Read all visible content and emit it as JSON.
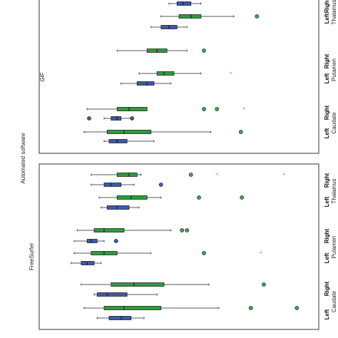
{
  "chart_data": {
    "type": "boxplot",
    "orientation": "horizontal",
    "outer_label": "Automated software",
    "colors": {
      "blue": "#3d5aa6",
      "green": "#2e9b3b",
      "outlier_green": "#3fa34d",
      "panel_border": "#333333"
    },
    "panels": [
      {
        "name": "GIF",
        "regions": [
          {
            "name": "Thalamus",
            "sides": [
              {
                "side": "Right",
                "boxes": [
                  {
                    "color": "blue",
                    "min": 0.23,
                    "q1": 0.238,
                    "median": 0.244,
                    "q3": 0.252,
                    "max": 0.262,
                    "outliers": [],
                    "stars": []
                  },
                  {
                    "color": "green",
                    "min": 0.222,
                    "q1": 0.24,
                    "median": 0.252,
                    "q3": 0.262,
                    "max": 0.295,
                    "outliers": [
                      0.318
                    ],
                    "stars": []
                  }
                ]
              },
              {
                "side": "Left",
                "boxes": [
                  {
                    "color": "blue",
                    "min": 0.212,
                    "q1": 0.222,
                    "median": 0.23,
                    "q3": 0.238,
                    "max": 0.248,
                    "outliers": [],
                    "stars": []
                  }
                ]
              }
            ]
          },
          {
            "name": "Putamen",
            "sides": [
              {
                "side": "Right",
                "boxes": [
                  {
                    "color": "green",
                    "min": 0.178,
                    "q1": 0.208,
                    "median": 0.218,
                    "q3": 0.228,
                    "max": 0.248,
                    "outliers": [
                      0.265
                    ],
                    "stars": []
                  },
                  {
                    "color": "green",
                    "min": 0.2,
                    "q1": 0.218,
                    "median": 0.225,
                    "q3": 0.235,
                    "max": 0.262,
                    "outliers": [],
                    "stars": [
                      0.292
                    ]
                  }
                ]
              },
              {
                "side": "Left",
                "boxes": [
                  {
                    "color": "blue",
                    "min": 0.182,
                    "q1": 0.198,
                    "median": 0.208,
                    "q3": 0.215,
                    "max": 0.232,
                    "outliers": [],
                    "stars": []
                  }
                ]
              }
            ]
          },
          {
            "name": "Caudate",
            "sides": [
              {
                "side": "Right",
                "boxes": [
                  {
                    "color": "green",
                    "min": 0.148,
                    "q1": 0.178,
                    "median": 0.19,
                    "q3": 0.208,
                    "max": 0.208,
                    "outliers": [
                      0.265,
                      0.278
                    ],
                    "stars": [
                      0.305
                    ]
                  },
                  {
                    "color": "blue",
                    "min": 0.165,
                    "q1": 0.172,
                    "median": 0.178,
                    "q3": 0.182,
                    "max": 0.192,
                    "outliers": [
                      0.15,
                      0.193
                    ],
                    "stars": []
                  }
                ]
              },
              {
                "side": "Left",
                "boxes": [
                  {
                    "color": "green",
                    "min": 0.145,
                    "q1": 0.168,
                    "median": 0.185,
                    "q3": 0.212,
                    "max": 0.272,
                    "outliers": [
                      0.302
                    ],
                    "stars": []
                  },
                  {
                    "color": "blue",
                    "min": 0.165,
                    "q1": 0.17,
                    "median": 0.178,
                    "q3": 0.188,
                    "max": 0.215,
                    "outliers": [],
                    "stars": []
                  }
                ]
              }
            ]
          }
        ]
      },
      {
        "name": "FreeSurfer",
        "regions": [
          {
            "name": "Thalamus",
            "sides": [
              {
                "side": "Right",
                "boxes": [
                  {
                    "color": "green",
                    "min": 0.152,
                    "q1": 0.178,
                    "median": 0.19,
                    "q3": 0.198,
                    "max": 0.202,
                    "outliers": [
                      0.252
                    ],
                    "stars": [
                      0.278,
                      0.345
                    ]
                  },
                  {
                    "color": "blue",
                    "min": 0.152,
                    "q1": 0.165,
                    "median": 0.172,
                    "q3": 0.182,
                    "max": 0.195,
                    "outliers": [
                      0.222
                    ],
                    "stars": []
                  }
                ]
              },
              {
                "side": "Left",
                "boxes": [
                  {
                    "color": "green",
                    "min": 0.16,
                    "q1": 0.178,
                    "median": 0.192,
                    "q3": 0.208,
                    "max": 0.222,
                    "outliers": [
                      0.26,
                      0.303
                    ],
                    "stars": []
                  },
                  {
                    "color": "blue",
                    "min": 0.162,
                    "q1": 0.168,
                    "median": 0.178,
                    "q3": 0.19,
                    "max": 0.2,
                    "outliers": [],
                    "stars": []
                  }
                ]
              }
            ]
          },
          {
            "name": "Putamen",
            "sides": [
              {
                "side": "Right",
                "boxes": [
                  {
                    "color": "green",
                    "min": 0.138,
                    "q1": 0.155,
                    "median": 0.165,
                    "q3": 0.185,
                    "max": 0.232,
                    "outliers": [
                      0.243,
                      0.248
                    ],
                    "stars": []
                  },
                  {
                    "color": "blue",
                    "min": 0.135,
                    "q1": 0.148,
                    "median": 0.152,
                    "q3": 0.158,
                    "max": 0.165,
                    "outliers": [
                      0.177
                    ],
                    "stars": []
                  }
                ]
              },
              {
                "side": "Left",
                "boxes": [
                  {
                    "color": "green",
                    "min": 0.135,
                    "q1": 0.152,
                    "median": 0.165,
                    "q3": 0.178,
                    "max": 0.212,
                    "outliers": [
                      0.265
                    ],
                    "stars": [
                      0.322
                    ]
                  },
                  {
                    "color": "blue",
                    "min": 0.132,
                    "q1": 0.142,
                    "median": 0.148,
                    "q3": 0.155,
                    "max": 0.162,
                    "outliers": [],
                    "stars": []
                  }
                ]
              }
            ]
          },
          {
            "name": "Caudate",
            "sides": [
              {
                "side": "Right",
                "boxes": [
                  {
                    "color": "green",
                    "min": 0.142,
                    "q1": 0.172,
                    "median": 0.195,
                    "q3": 0.225,
                    "max": 0.27,
                    "outliers": [
                      0.325
                    ],
                    "stars": []
                  },
                  {
                    "color": "blue",
                    "min": 0.155,
                    "q1": 0.158,
                    "median": 0.168,
                    "q3": 0.188,
                    "max": 0.218,
                    "outliers": [],
                    "stars": []
                  }
                ]
              },
              {
                "side": "Left",
                "boxes": [
                  {
                    "color": "green",
                    "min": 0.145,
                    "q1": 0.165,
                    "median": 0.185,
                    "q3": 0.222,
                    "max": 0.28,
                    "outliers": [
                      0.312,
                      0.358
                    ],
                    "stars": []
                  },
                  {
                    "color": "blue",
                    "min": 0.158,
                    "q1": 0.17,
                    "median": 0.182,
                    "q3": 0.192,
                    "max": 0.205,
                    "outliers": [],
                    "stars": []
                  }
                ]
              }
            ]
          }
        ]
      }
    ]
  }
}
